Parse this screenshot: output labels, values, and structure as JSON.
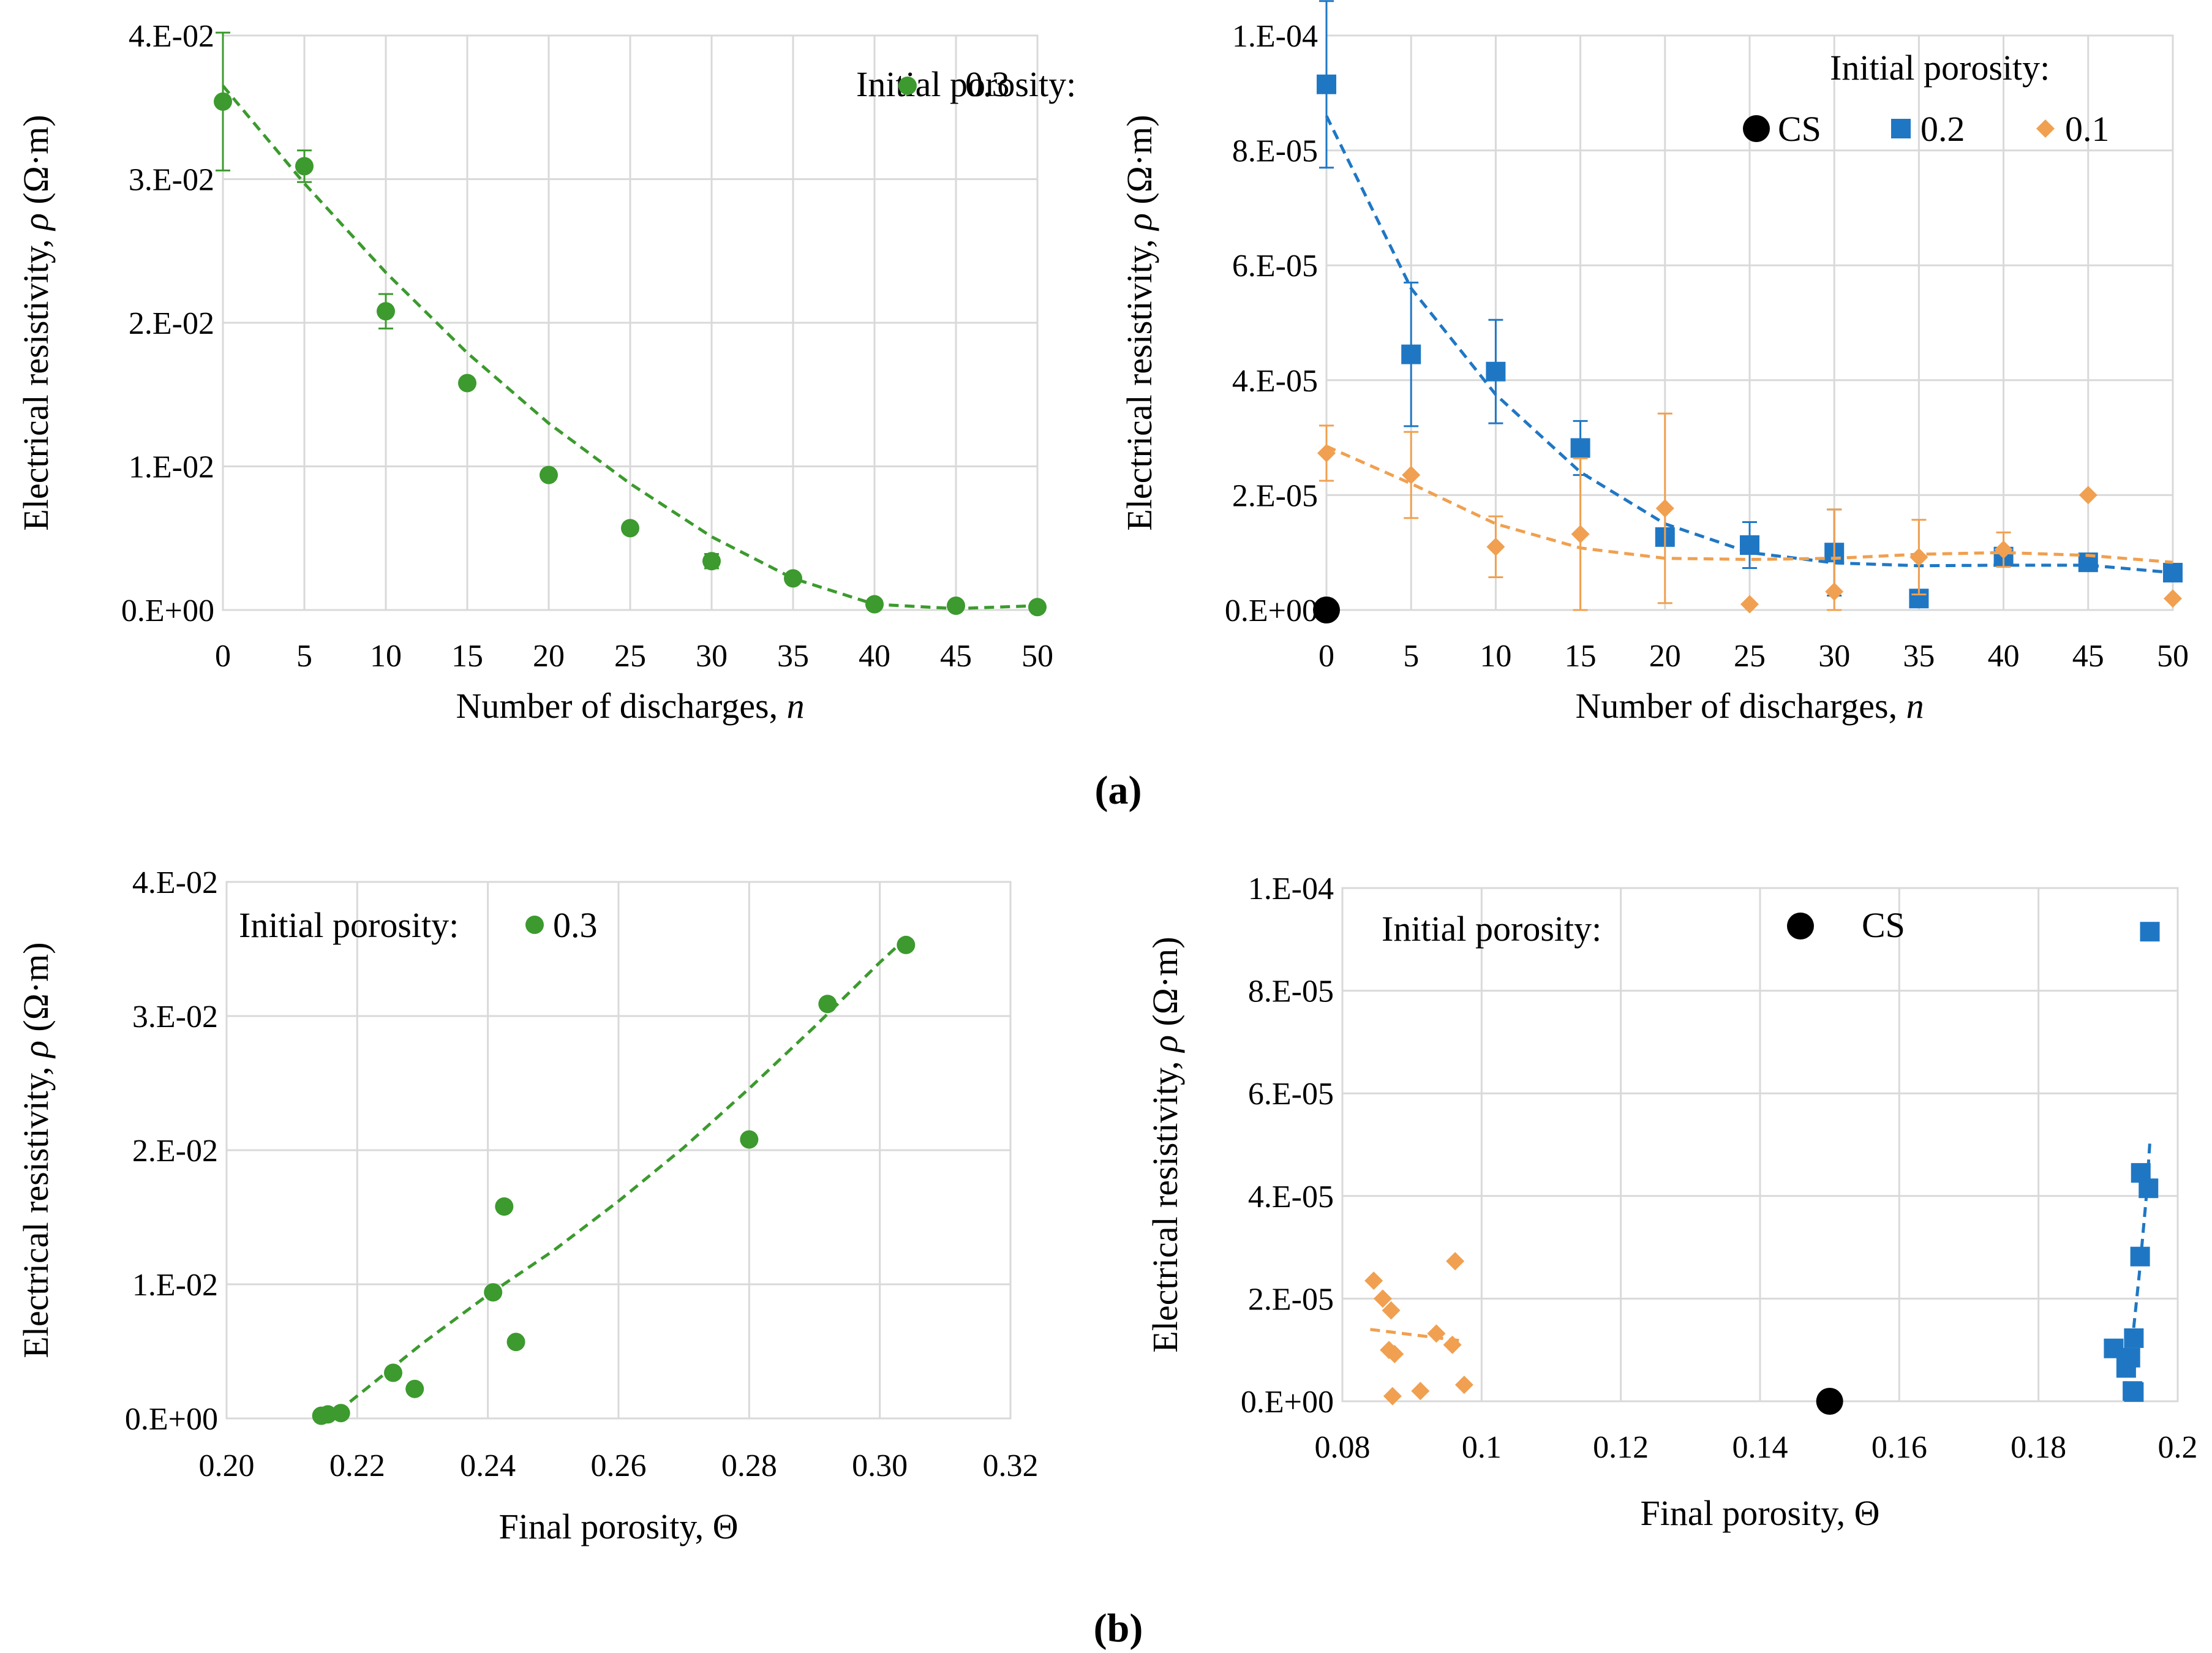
{
  "figure": {
    "panel_labels": [
      "(a)",
      "(b)"
    ]
  },
  "colors": {
    "green": "#3c9a2e",
    "blue": "#1f77c4",
    "orange": "#f0a050",
    "black": "#000000",
    "grid": "#d9d9d9"
  },
  "chart_data": [
    {
      "id": "a-left",
      "type": "scatter",
      "xlabel": "Number of discharges, ",
      "xlabel_italic": "n",
      "ylabel": "Electrical resistivity, ",
      "ylabel_italic": "ρ",
      "ylabel_unit": " (Ω·m)",
      "xlim": [
        0,
        50
      ],
      "ylim": [
        0,
        0.04
      ],
      "x_ticks": [
        0,
        5,
        10,
        15,
        20,
        25,
        30,
        35,
        40,
        45,
        50
      ],
      "x_tick_labels": [
        "0",
        "5",
        "10",
        "15",
        "20",
        "25",
        "30",
        "35",
        "40",
        "45",
        "50"
      ],
      "y_ticks": [
        0,
        0.01,
        0.02,
        0.03,
        0.04
      ],
      "y_tick_labels": [
        "0.E+00",
        "1.E-02",
        "2.E-02",
        "3.E-02",
        "4.E-02"
      ],
      "legend_title": "Initial porosity:",
      "series": [
        {
          "name": "0.3",
          "color": "green",
          "marker": "circle",
          "x": [
            0,
            5,
            10,
            15,
            20,
            25,
            30,
            35,
            40,
            45,
            50
          ],
          "y": [
            0.0354,
            0.0309,
            0.0208,
            0.0158,
            0.0094,
            0.0057,
            0.0034,
            0.0022,
            0.0004,
            0.0003,
            0.0002
          ],
          "err": [
            0.0048,
            0.0011,
            0.0012,
            0.0003,
            0.0003,
            0.0003,
            0.0005,
            0.0003,
            0.0003,
            0.0001,
            0.0001
          ],
          "trend_x": [
            0,
            5,
            10,
            15,
            20,
            25,
            30,
            35,
            40,
            45,
            50
          ],
          "trend_y": [
            0.0365,
            0.0297,
            0.0235,
            0.0179,
            0.013,
            0.0088,
            0.0051,
            0.0022,
            0.0004,
            0.0001,
            0.0003
          ]
        }
      ]
    },
    {
      "id": "a-right",
      "type": "scatter",
      "xlabel": "Number of discharges, ",
      "xlabel_italic": "n",
      "ylabel": "Electrical resistivity, ",
      "ylabel_italic": "ρ",
      "ylabel_unit": " (Ω·m)",
      "xlim": [
        0,
        50
      ],
      "ylim": [
        0,
        0.0001
      ],
      "x_ticks": [
        0,
        5,
        10,
        15,
        20,
        25,
        30,
        35,
        40,
        45,
        50
      ],
      "x_tick_labels": [
        "0",
        "5",
        "10",
        "15",
        "20",
        "25",
        "30",
        "35",
        "40",
        "45",
        "50"
      ],
      "y_ticks": [
        0,
        2e-05,
        4e-05,
        6e-05,
        8e-05,
        0.0001
      ],
      "y_tick_labels": [
        "0.E+00",
        "2.E-05",
        "4.E-05",
        "6.E-05",
        "8.E-05",
        "1.E-04"
      ],
      "legend_title": "Initial porosity:",
      "series": [
        {
          "name": "CS",
          "color": "black",
          "marker": "circle-large",
          "x": [
            0
          ],
          "y": [
            0
          ],
          "err": [
            0
          ]
        },
        {
          "name": "0.2",
          "color": "blue",
          "marker": "square",
          "x": [
            0,
            5,
            10,
            15,
            20,
            25,
            30,
            35,
            40,
            45,
            50
          ],
          "y": [
            9.15e-05,
            4.45e-05,
            4.15e-05,
            2.82e-05,
            1.27e-05,
            1.13e-05,
            1e-05,
            2e-06,
            9.3e-06,
            8.3e-06,
            6.5e-06
          ],
          "err": [
            1.45e-05,
            1.25e-05,
            9e-06,
            4.7e-06,
            1e-06,
            4e-06,
            7.5e-06,
            0.0,
            1e-06,
            0.0,
            0.0
          ],
          "trend_x": [
            0,
            5,
            10,
            15,
            20,
            25,
            30,
            35,
            40,
            45,
            50
          ],
          "trend_y": [
            8.6e-05,
            5.6e-05,
            3.75e-05,
            2.4e-05,
            1.5e-05,
            1e-05,
            8.2e-06,
            7.7e-06,
            7.8e-06,
            7.8e-06,
            6.5e-06
          ]
        },
        {
          "name": "0.1",
          "color": "orange",
          "marker": "diamond",
          "x": [
            0,
            5,
            10,
            15,
            20,
            25,
            30,
            35,
            40,
            45,
            50
          ],
          "y": [
            2.73e-05,
            2.35e-05,
            1.1e-05,
            1.32e-05,
            1.77e-05,
            1e-06,
            3.2e-06,
            9.2e-06,
            1.05e-05,
            2e-05,
            2e-06
          ],
          "err": [
            4.8e-06,
            7.5e-06,
            5.3e-06,
            1.32e-05,
            1.65e-05,
            0.0,
            1.43e-05,
            6.5e-06,
            3e-06,
            0.0,
            0.0
          ],
          "trend_x": [
            0,
            5,
            10,
            15,
            20,
            25,
            30,
            35,
            40,
            45,
            50
          ],
          "trend_y": [
            2.85e-05,
            2.2e-05,
            1.5e-05,
            1.08e-05,
            9e-06,
            8.8e-06,
            9e-06,
            9.7e-06,
            1e-05,
            9.5e-06,
            8.3e-06
          ]
        }
      ]
    },
    {
      "id": "b-left",
      "type": "scatter",
      "xlabel": "Final porosity, Θ",
      "ylabel": "Electrical resistivity, ",
      "ylabel_italic": "ρ",
      "ylabel_unit": " (Ω·m)",
      "xlim": [
        0.2,
        0.32
      ],
      "ylim": [
        0,
        0.04
      ],
      "x_ticks": [
        0.2,
        0.22,
        0.24,
        0.26,
        0.28,
        0.3,
        0.32
      ],
      "x_tick_labels": [
        "0.20",
        "0.22",
        "0.24",
        "0.26",
        "0.28",
        "0.30",
        "0.32"
      ],
      "y_ticks": [
        0,
        0.01,
        0.02,
        0.03,
        0.04
      ],
      "y_tick_labels": [
        "0.E+00",
        "1.E-02",
        "2.E-02",
        "3.E-02",
        "4.E-02"
      ],
      "legend_title": "Initial porosity:",
      "series": [
        {
          "name": "0.3",
          "color": "green",
          "marker": "circle",
          "x": [
            0.304,
            0.292,
            0.28,
            0.2425,
            0.2408,
            0.2443,
            0.2255,
            0.2288,
            0.2175,
            0.2155,
            0.2145
          ],
          "y": [
            0.0353,
            0.0309,
            0.0208,
            0.0158,
            0.0094,
            0.0057,
            0.0034,
            0.0022,
            0.0004,
            0.0003,
            0.0002
          ],
          "trend_x": [
            0.217,
            0.23,
            0.24,
            0.25,
            0.26,
            0.27,
            0.28,
            0.29,
            0.3,
            0.304
          ],
          "trend_y": [
            0.0005,
            0.0056,
            0.0092,
            0.0125,
            0.0162,
            0.0202,
            0.0246,
            0.0292,
            0.034,
            0.0358
          ]
        }
      ]
    },
    {
      "id": "b-right",
      "type": "scatter",
      "xlabel": "Final porosity, Θ",
      "ylabel": "Electrical resistivity, ",
      "ylabel_italic": "ρ",
      "ylabel_unit": " (Ω·m)",
      "xlim": [
        0.08,
        0.2
      ],
      "ylim": [
        0,
        0.0001
      ],
      "x_ticks": [
        0.08,
        0.1,
        0.12,
        0.14,
        0.16,
        0.18,
        0.2
      ],
      "x_tick_labels": [
        "0.08",
        "0.1",
        "0.12",
        "0.14",
        "0.16",
        "0.18",
        "0.2"
      ],
      "y_ticks": [
        0,
        2e-05,
        4e-05,
        6e-05,
        8e-05,
        0.0001
      ],
      "y_tick_labels": [
        "0.E+00",
        "2.E-05",
        "4.E-05",
        "6.E-05",
        "8.E-05",
        "1.E-04"
      ],
      "legend_title": "Initial porosity:",
      "series": [
        {
          "name": "CS",
          "color": "black",
          "marker": "circle-large",
          "x": [
            0.15
          ],
          "y": [
            0
          ]
        },
        {
          "name": "0.2",
          "color": "blue",
          "marker": "square",
          "x": [
            0.196,
            0.1947,
            0.1958,
            0.1946,
            0.1908,
            0.1937,
            0.1926,
            0.1932,
            0.1935,
            0.1937
          ],
          "y": [
            9.15e-05,
            4.45e-05,
            4.15e-05,
            2.82e-05,
            1.03e-05,
            1.23e-05,
            6.5e-06,
            8.5e-06,
            2e-06,
            1.8e-06
          ],
          "trend_x": [
            0.1925,
            0.1935,
            0.1945,
            0.1955,
            0.196
          ],
          "trend_y": [
            2e-06,
            1.2e-05,
            2.5e-05,
            4e-05,
            5.05e-05
          ]
        },
        {
          "name": "0.1",
          "color": "orange",
          "marker": "diamond",
          "x": [
            0.0962,
            0.0845,
            0.0858,
            0.087,
            0.0867,
            0.0875,
            0.0935,
            0.0958,
            0.0975,
            0.0912,
            0.0872
          ],
          "y": [
            2.73e-05,
            2.35e-05,
            2e-05,
            1.77e-05,
            1e-05,
            9.2e-06,
            1.32e-05,
            1.1e-05,
            3.2e-06,
            2e-06,
            1e-06
          ],
          "trend_x": [
            0.084,
            0.097
          ],
          "trend_y": [
            1.4e-05,
            1.18e-05
          ]
        }
      ]
    }
  ]
}
